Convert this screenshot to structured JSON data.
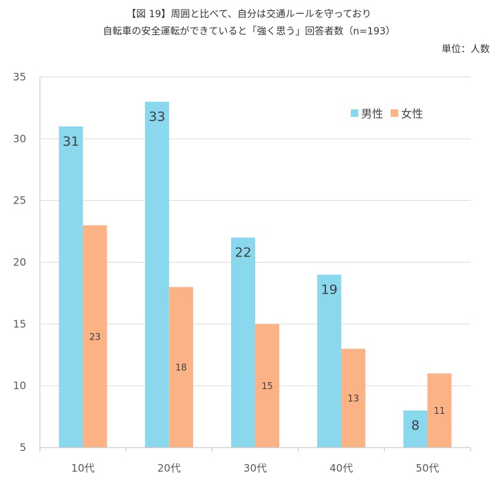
{
  "header": {
    "title_line1": "【図 19】周囲と比べて、自分は交通ルールを守っており",
    "title_line2": "自転車の安全運転ができていると「強く思う」回答者数（n=193）",
    "unit": "単位：人数"
  },
  "chart_data": {
    "type": "bar",
    "title": "【図 19】周囲と比べて、自分は交通ルールを守っており 自転車の安全運転ができていると「強く思う」回答者数（n=193）",
    "xlabel": "",
    "ylabel": "単位：人数",
    "categories": [
      "10代",
      "20代",
      "30代",
      "40代",
      "50代"
    ],
    "series": [
      {
        "name": "男性",
        "values": [
          31,
          33,
          22,
          19,
          8
        ],
        "color": "#8ad8ee"
      },
      {
        "name": "女性",
        "values": [
          23,
          18,
          15,
          13,
          11
        ],
        "color": "#fbb386"
      }
    ],
    "ylim": [
      5,
      35
    ],
    "yticks": [
      5,
      10,
      15,
      20,
      25,
      30,
      35
    ],
    "grid": true,
    "legend": "top-right"
  }
}
